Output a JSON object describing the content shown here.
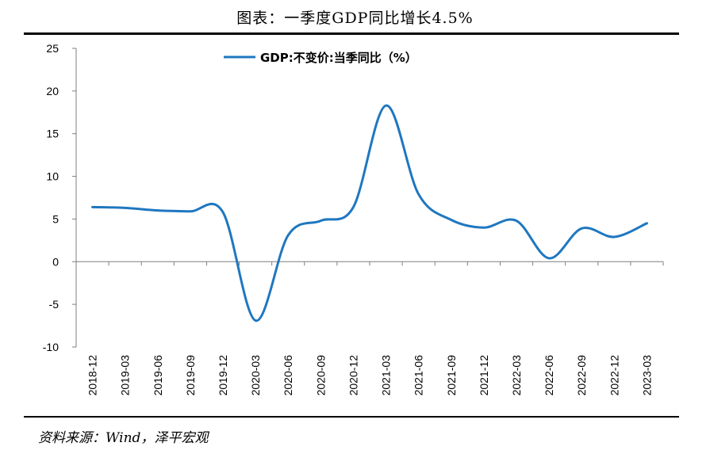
{
  "header": {
    "title": "图表：一季度GDP同比增长4.5%"
  },
  "footer": {
    "source": "资料来源：Wind，泽平宏观"
  },
  "colors": {
    "series": "#1f77c0",
    "axis": "#7f7f7f"
  },
  "chart_data": {
    "type": "line",
    "title": "图表：一季度GDP同比增长4.5%",
    "xlabel": "",
    "ylabel": "",
    "ylim": [
      -10,
      25
    ],
    "yticks": [
      -10,
      -5,
      0,
      5,
      10,
      15,
      20,
      25
    ],
    "categories": [
      "2018-12",
      "2019-03",
      "2019-06",
      "2019-09",
      "2019-12",
      "2020-03",
      "2020-06",
      "2020-09",
      "2020-12",
      "2021-03",
      "2021-06",
      "2021-09",
      "2021-12",
      "2022-03",
      "2022-06",
      "2022-09",
      "2022-12",
      "2023-03"
    ],
    "grid": false,
    "legend_position": "top-center",
    "series": [
      {
        "name": "GDP:不变价:当季同比（%）",
        "values": [
          6.4,
          6.3,
          6.0,
          5.9,
          5.8,
          -6.9,
          3.1,
          4.8,
          6.4,
          18.3,
          7.9,
          4.9,
          4.0,
          4.8,
          0.4,
          3.9,
          2.9,
          4.5
        ]
      }
    ]
  }
}
